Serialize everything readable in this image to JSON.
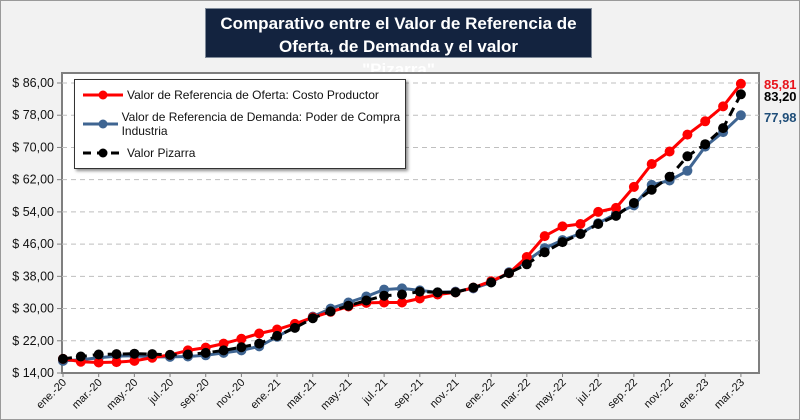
{
  "chart_data": {
    "type": "line",
    "title": "Comparativo entre el Valor de Referencia de Oferta, de Demanda y el valor \"Pizarra\"",
    "title_lines": [
      "Comparativo entre el Valor de Referencia de Oferta, de Demanda y el valor",
      "\"Pizarra\""
    ],
    "xlabel": "",
    "ylabel": "",
    "ylim": [
      14,
      86
    ],
    "yticks": [
      14,
      22,
      30,
      38,
      46,
      54,
      62,
      70,
      78,
      86
    ],
    "ytick_labels": [
      "$ 14,00",
      "$ 22,00",
      "$ 30,00",
      "$ 38,00",
      "$ 46,00",
      "$ 54,00",
      "$ 62,00",
      "$ 70,00",
      "$ 78,00",
      "$ 86,00"
    ],
    "grid": "horizontal-dashed",
    "legend_position": "top-left",
    "x": [
      "ene.-20",
      "feb.-20",
      "mar.-20",
      "abr.-20",
      "may.-20",
      "jun.-20",
      "jul.-20",
      "ago.-20",
      "sep.-20",
      "oct.-20",
      "nov.-20",
      "dic.-20",
      "ene.-21",
      "feb.-21",
      "mar.-21",
      "abr.-21",
      "may.-21",
      "jun.-21",
      "jul.-21",
      "ago.-21",
      "sep.-21",
      "oct.-21",
      "nov.-21",
      "dic.-21",
      "ene.-22",
      "feb.-22",
      "mar.-22",
      "abr.-22",
      "may.-22",
      "jun.-22",
      "jul.-22",
      "ago.-22",
      "sep.-22",
      "oct.-22",
      "nov.-22",
      "dic.-22",
      "ene.-23",
      "feb.-23",
      "mar.-23"
    ],
    "xtick_labels": [
      "ene.-20",
      "mar.-20",
      "may.-20",
      "jul.-20",
      "sep.-20",
      "nov.-20",
      "ene.-21",
      "mar.-21",
      "may.-21",
      "jul.-21",
      "sep.-21",
      "nov.-21",
      "ene.-22",
      "mar.-22",
      "may.-22",
      "jul.-22",
      "sep.-22",
      "nov.-22",
      "ene.-23",
      "mar.-23"
    ],
    "series": [
      {
        "name": "Valor de Referencia de Oferta: Costo Productor",
        "color": "#ff0000",
        "dash": false,
        "end_label": "85,81",
        "values": [
          17.5,
          16.8,
          16.6,
          16.7,
          17.0,
          17.8,
          18.5,
          19.6,
          20.3,
          21.3,
          22.5,
          23.8,
          24.8,
          26.2,
          27.8,
          29.2,
          30.5,
          31.4,
          31.5,
          31.5,
          32.5,
          33.5,
          34.0,
          35.2,
          36.8,
          38.8,
          42.8,
          48.0,
          50.4,
          51.0,
          54.0,
          55.0,
          60.2,
          65.9,
          69.0,
          73.2,
          76.5,
          80.2,
          85.81
        ]
      },
      {
        "name": "Valor de Referencia de Demanda: Poder de Compra Industria",
        "color": "#3f6592",
        "dash": false,
        "end_label": "77,98",
        "values": [
          17.0,
          17.3,
          17.8,
          18.2,
          18.3,
          18.0,
          18.0,
          18.1,
          18.4,
          19.0,
          19.6,
          20.6,
          23.0,
          25.5,
          28.0,
          30.0,
          31.5,
          33.0,
          34.7,
          35.0,
          34.5,
          34.0,
          34.2,
          35.0,
          36.5,
          39.0,
          41.8,
          45.0,
          47.0,
          48.6,
          51.2,
          53.5,
          55.6,
          60.7,
          61.8,
          64.2,
          70.2,
          73.8,
          77.98
        ]
      },
      {
        "name": "Valor Pizarra",
        "color": "#000000",
        "dash": true,
        "end_label": "83,20",
        "values": [
          17.5,
          18.1,
          18.6,
          18.7,
          18.8,
          18.7,
          18.5,
          18.6,
          19.0,
          19.6,
          20.4,
          21.3,
          23.2,
          25.2,
          27.6,
          29.3,
          30.7,
          32.0,
          33.2,
          33.5,
          34.2,
          34.0,
          34.0,
          35.2,
          36.5,
          38.8,
          41.0,
          44.0,
          46.5,
          48.5,
          51.0,
          53.0,
          56.2,
          59.5,
          62.7,
          67.8,
          70.8,
          74.8,
          83.2
        ]
      }
    ]
  }
}
